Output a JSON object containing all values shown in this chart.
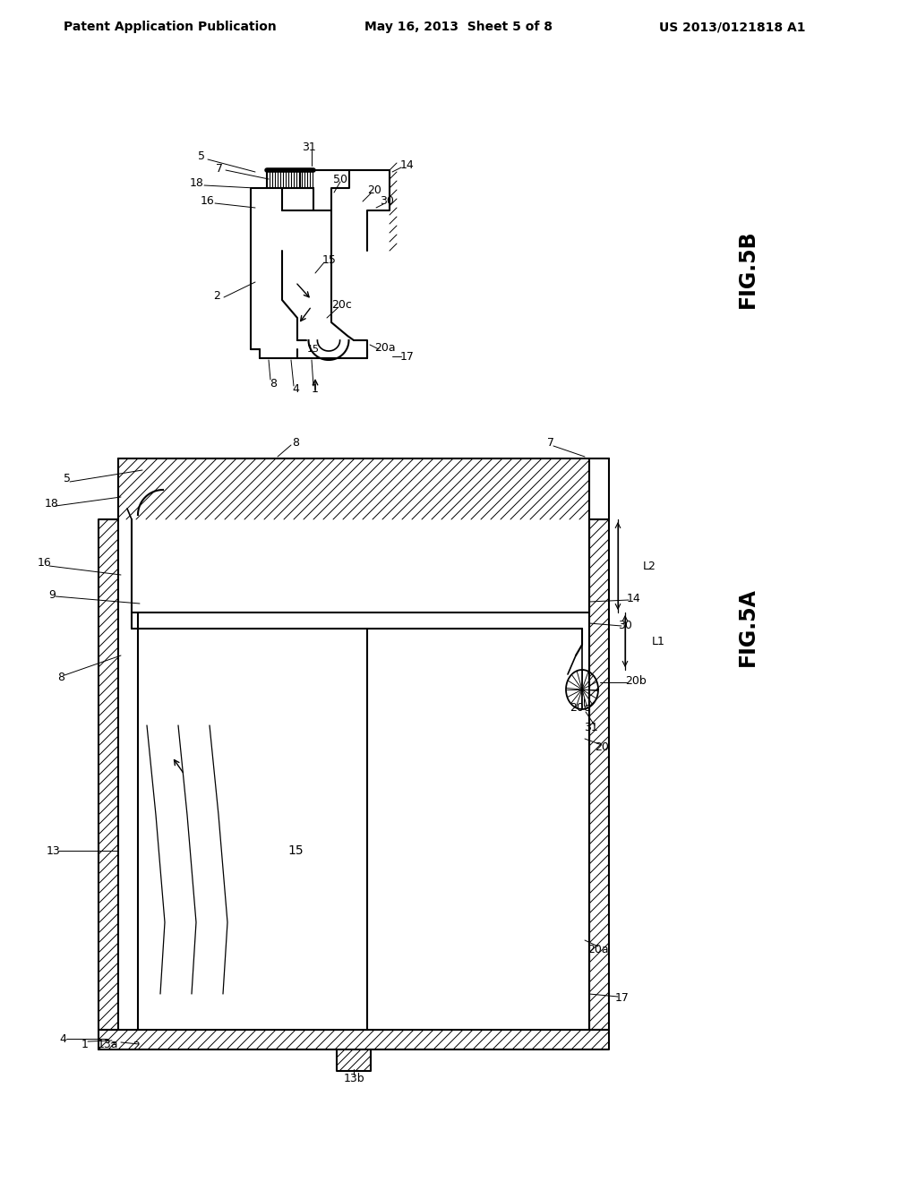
{
  "background_color": "#ffffff",
  "header_left": "Patent Application Publication",
  "header_center": "May 16, 2013  Sheet 5 of 8",
  "header_right": "US 2013/0121818 A1",
  "fig5b_label": "FIG.5B",
  "fig5a_label": "FIG.5A"
}
